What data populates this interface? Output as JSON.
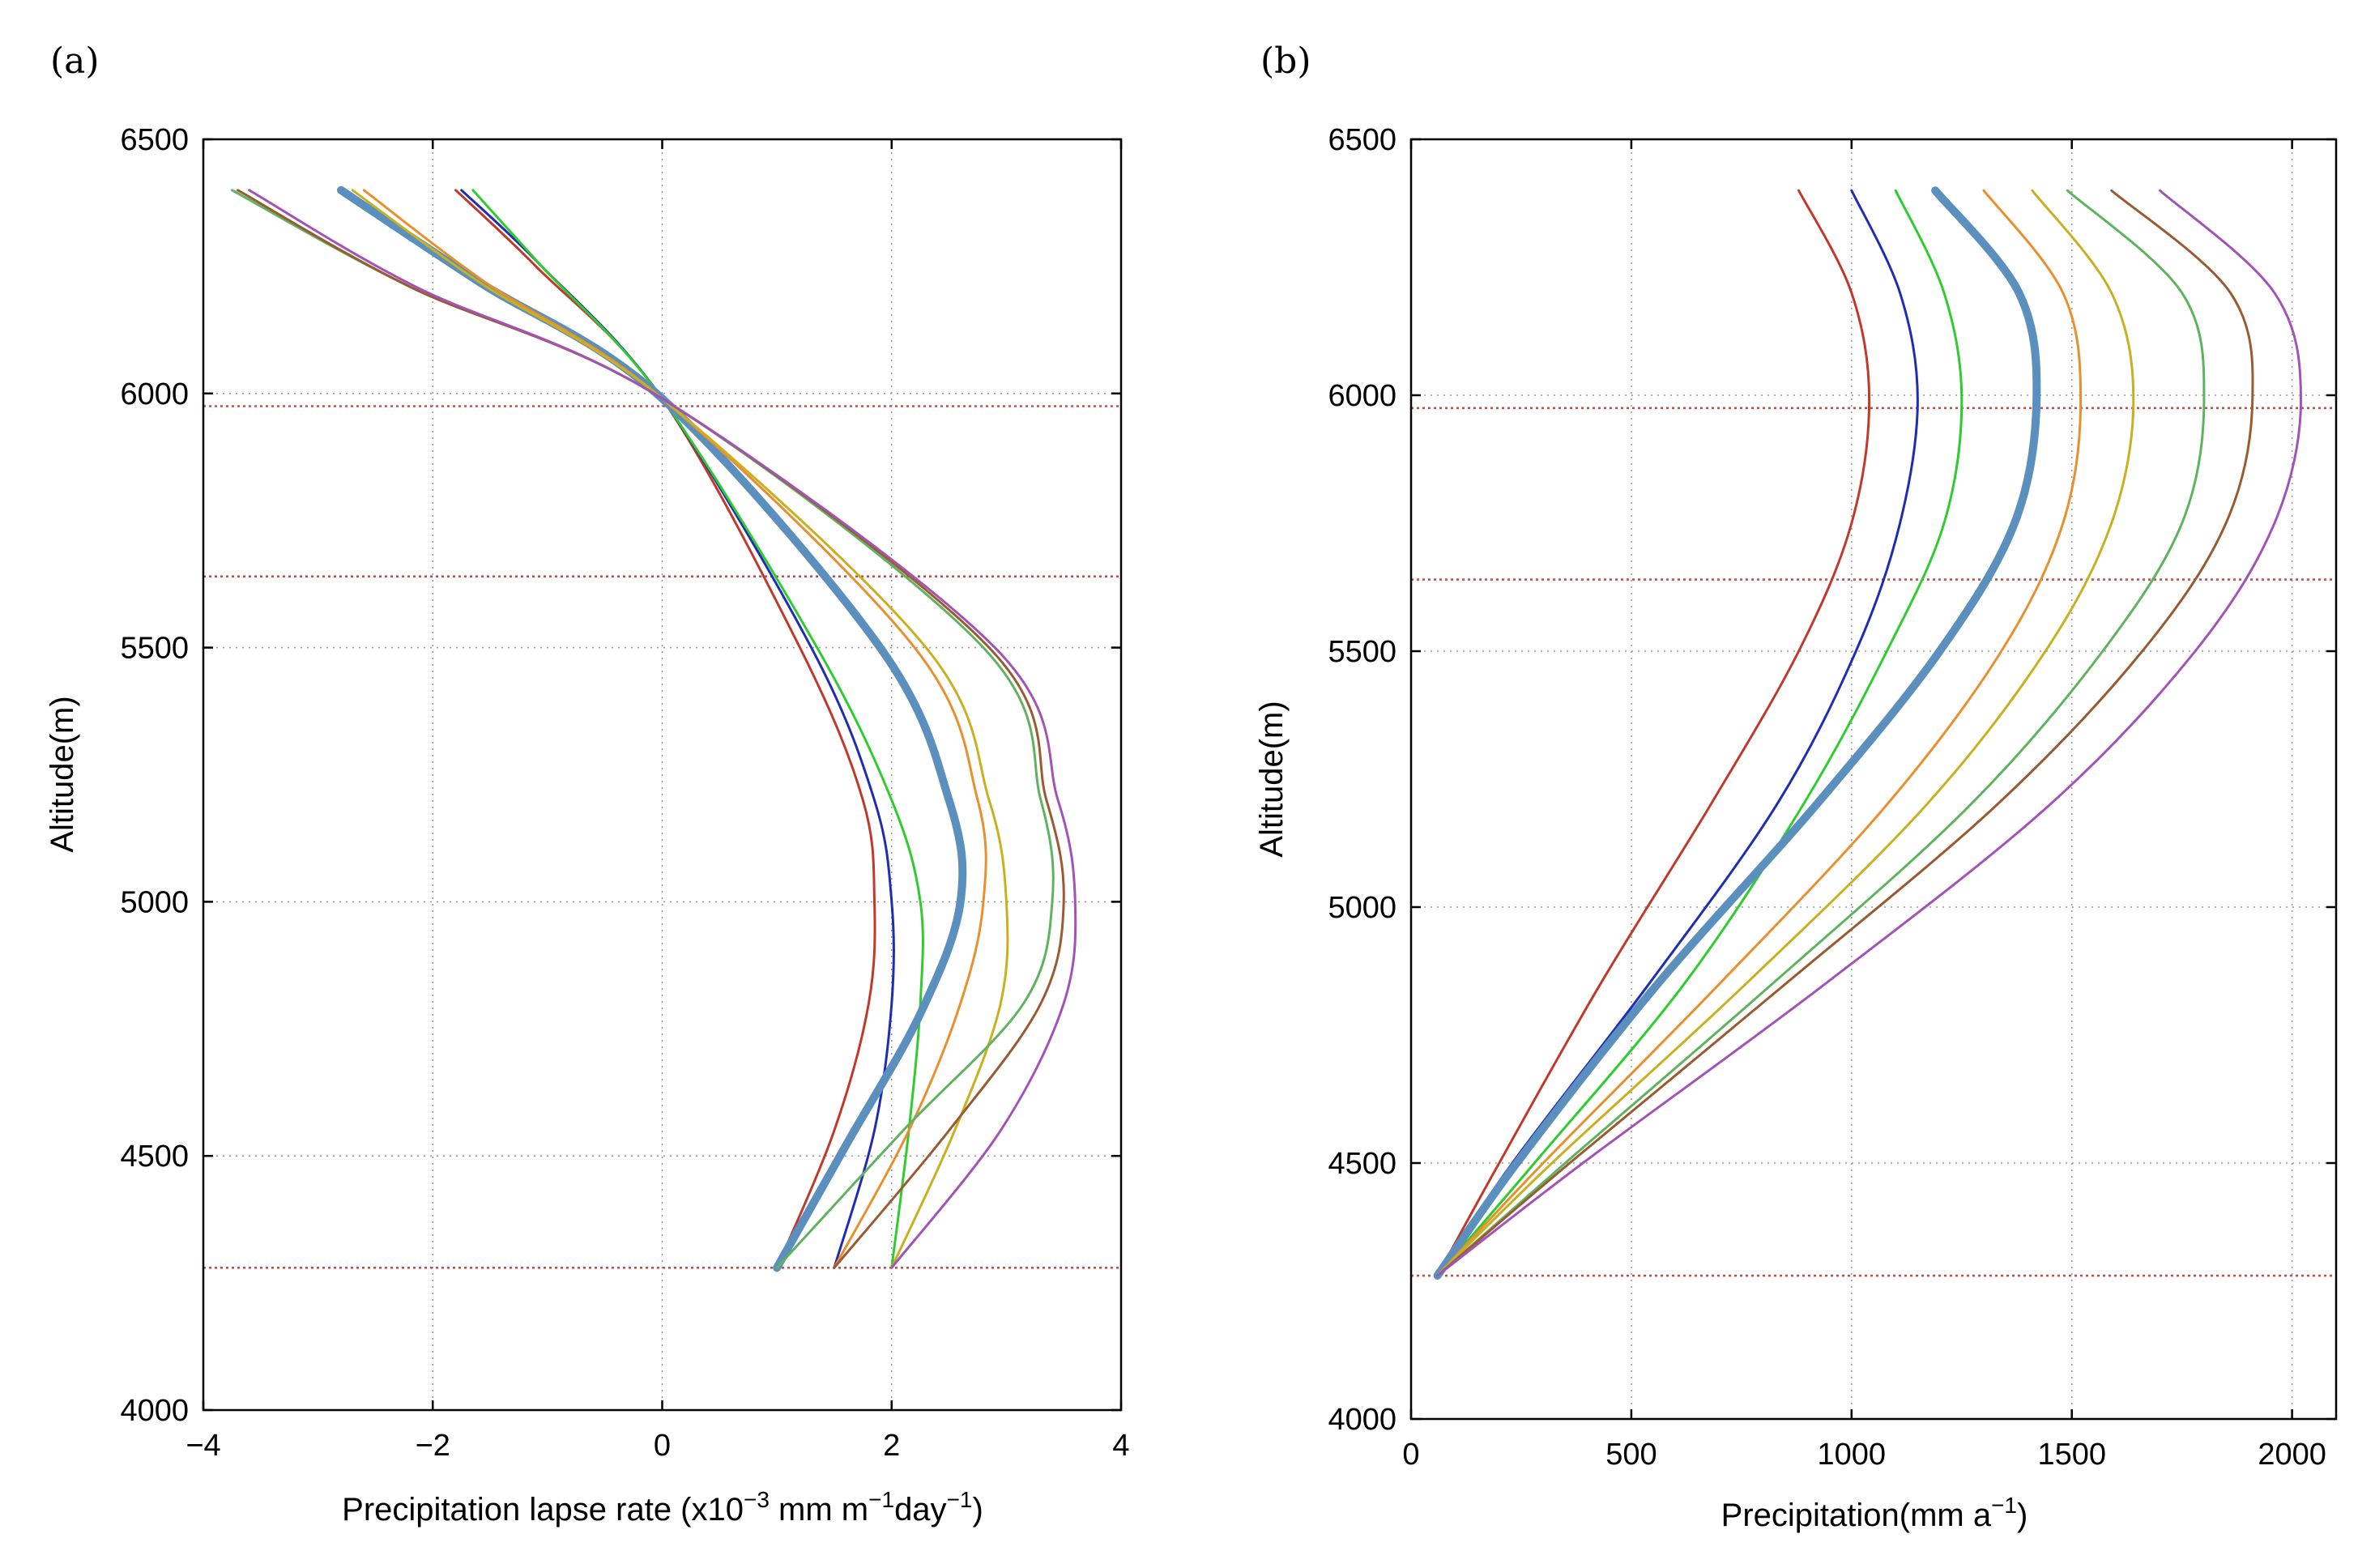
{
  "chart_data": [
    {
      "panel": "(a)",
      "type": "line",
      "xlabel": "Precipitation lapse rate (x10",
      "xlabel_parts": [
        "Precipitation lapse rate (x10",
        "−3",
        " mm m",
        "−1",
        "day",
        "−1",
        ")"
      ],
      "ylabel": "Altitude(m)",
      "xlim": [
        -4,
        4
      ],
      "ylim": [
        4000,
        6500
      ],
      "xticks": [
        -4,
        -2,
        0,
        2,
        4
      ],
      "xtick_labels": [
        "−4",
        "−2",
        "0",
        "2",
        "4"
      ],
      "yticks": [
        4000,
        4500,
        5000,
        5500,
        6000,
        6500
      ],
      "ytick_labels": [
        "4000",
        "4500",
        "5000",
        "5500",
        "6000",
        "6500"
      ],
      "grid": true,
      "reference_lines_y": [
        4280,
        5640,
        5975
      ],
      "series": [
        {
          "color": "#c0392b",
          "width": 3,
          "x": [
            1.0,
            1.5,
            1.8,
            1.85,
            1.75,
            1.2,
            0,
            -1.1,
            -1.8
          ],
          "y": [
            4280,
            4550,
            4800,
            5000,
            5200,
            5500,
            5990,
            6250,
            6400
          ]
        },
        {
          "color": "#1f2db3",
          "width": 3,
          "x": [
            1.5,
            1.85,
            2.0,
            2.0,
            1.85,
            1.3,
            0,
            -1.05,
            -1.75
          ],
          "y": [
            4280,
            4550,
            4800,
            5000,
            5200,
            5500,
            5990,
            6250,
            6400
          ]
        },
        {
          "color": "#2ecc2e",
          "width": 3,
          "x": [
            2.0,
            2.15,
            2.25,
            2.25,
            2.0,
            1.35,
            0,
            -1.05,
            -1.65
          ],
          "y": [
            4280,
            4550,
            4800,
            5000,
            5200,
            5500,
            5990,
            6250,
            6400
          ]
        },
        {
          "color": "#5b8fbd",
          "width": 10,
          "x": [
            1.0,
            1.6,
            2.25,
            2.6,
            2.5,
            1.9,
            0,
            -1.6,
            -2.8
          ],
          "y": [
            4280,
            4520,
            4780,
            5000,
            5200,
            5500,
            5990,
            6220,
            6400
          ]
        },
        {
          "color": "#e8902e",
          "width": 3,
          "x": [
            1.5,
            2.15,
            2.6,
            2.8,
            2.75,
            2.2,
            0,
            -1.55,
            -2.6
          ],
          "y": [
            4280,
            4550,
            4800,
            5000,
            5200,
            5500,
            5990,
            6220,
            6400
          ]
        },
        {
          "color": "#c8b020",
          "width": 3,
          "x": [
            2.0,
            2.55,
            2.95,
            3.0,
            2.85,
            2.3,
            0,
            -1.6,
            -2.7
          ],
          "y": [
            4280,
            4550,
            4800,
            5000,
            5200,
            5500,
            5990,
            6220,
            6400
          ]
        },
        {
          "color": "#5fb35f",
          "width": 3,
          "x": [
            1.0,
            2.1,
            3.15,
            3.4,
            3.3,
            2.8,
            0,
            -2.2,
            -3.75
          ],
          "y": [
            4280,
            4550,
            4800,
            5000,
            5200,
            5500,
            5990,
            6210,
            6400
          ]
        },
        {
          "color": "#9a5a32",
          "width": 3,
          "x": [
            1.5,
            2.5,
            3.3,
            3.5,
            3.35,
            2.85,
            0,
            -2.2,
            -3.7
          ],
          "y": [
            4280,
            4550,
            4800,
            5000,
            5200,
            5500,
            5990,
            6210,
            6400
          ]
        },
        {
          "color": "#a353b8",
          "width": 3,
          "x": [
            2.0,
            2.95,
            3.5,
            3.6,
            3.45,
            2.9,
            0,
            -2.15,
            -3.6
          ],
          "y": [
            4280,
            4550,
            4800,
            5000,
            5200,
            5500,
            5990,
            6210,
            6400
          ]
        }
      ]
    },
    {
      "panel": "(b)",
      "type": "line",
      "xlabel": "Precipitation(mm a",
      "xlabel_parts": [
        "Precipitation(mm a",
        "−1",
        ")"
      ],
      "ylabel": "Altitude(m)",
      "xlim": [
        0,
        2100
      ],
      "ylim": [
        4000,
        6500
      ],
      "xticks": [
        0,
        500,
        1000,
        1500,
        2000
      ],
      "xtick_labels": [
        "0",
        "500",
        "1000",
        "1500",
        "2000"
      ],
      "yticks": [
        4000,
        4500,
        5000,
        5500,
        6000,
        6500
      ],
      "ytick_labels": [
        "4000",
        "4500",
        "5000",
        "5500",
        "6000",
        "6500"
      ],
      "grid": true,
      "reference_lines_y": [
        4280,
        5640,
        5975
      ],
      "series": [
        {
          "color": "#c0392b",
          "width": 3,
          "x": [
            60,
            200,
            430,
            680,
            880,
            1000,
            1040,
            1000,
            880
          ],
          "y": [
            4280,
            4500,
            4850,
            5200,
            5500,
            5750,
            5990,
            6200,
            6400
          ]
        },
        {
          "color": "#1f2db3",
          "width": 3,
          "x": [
            60,
            230,
            540,
            830,
            1010,
            1110,
            1150,
            1110,
            1000
          ],
          "y": [
            4280,
            4500,
            4850,
            5200,
            5500,
            5750,
            5990,
            6200,
            6400
          ]
        },
        {
          "color": "#2ecc2e",
          "width": 3,
          "x": [
            60,
            280,
            620,
            890,
            1080,
            1210,
            1250,
            1210,
            1100
          ],
          "y": [
            4280,
            4500,
            4850,
            5200,
            5500,
            5750,
            5990,
            6200,
            6400
          ]
        },
        {
          "color": "#5b8fbd",
          "width": 10,
          "x": [
            60,
            240,
            560,
            920,
            1200,
            1370,
            1420,
            1380,
            1190
          ],
          "y": [
            4280,
            4500,
            4850,
            5200,
            5500,
            5750,
            5990,
            6200,
            6400
          ]
        },
        {
          "color": "#e8902e",
          "width": 3,
          "x": [
            60,
            300,
            700,
            1080,
            1340,
            1480,
            1520,
            1480,
            1300
          ],
          "y": [
            4280,
            4500,
            4850,
            5200,
            5500,
            5750,
            5990,
            6200,
            6400
          ]
        },
        {
          "color": "#c8b020",
          "width": 3,
          "x": [
            60,
            320,
            760,
            1170,
            1440,
            1590,
            1640,
            1590,
            1410
          ],
          "y": [
            4280,
            4500,
            4850,
            5200,
            5500,
            5750,
            5990,
            6200,
            6400
          ]
        },
        {
          "color": "#5fb35f",
          "width": 3,
          "x": [
            60,
            350,
            820,
            1270,
            1570,
            1750,
            1800,
            1750,
            1490
          ],
          "y": [
            4280,
            4500,
            4850,
            5200,
            5500,
            5750,
            5990,
            6200,
            6400
          ]
        },
        {
          "color": "#9a5a32",
          "width": 3,
          "x": [
            60,
            360,
            850,
            1330,
            1660,
            1850,
            1910,
            1860,
            1590
          ],
          "y": [
            4280,
            4500,
            4850,
            5200,
            5500,
            5750,
            5990,
            6200,
            6400
          ]
        },
        {
          "color": "#a353b8",
          "width": 3,
          "x": [
            60,
            390,
            940,
            1450,
            1780,
            1960,
            2020,
            1960,
            1700
          ],
          "y": [
            4280,
            4500,
            4850,
            5200,
            5500,
            5750,
            5990,
            6200,
            6400
          ]
        }
      ]
    }
  ]
}
